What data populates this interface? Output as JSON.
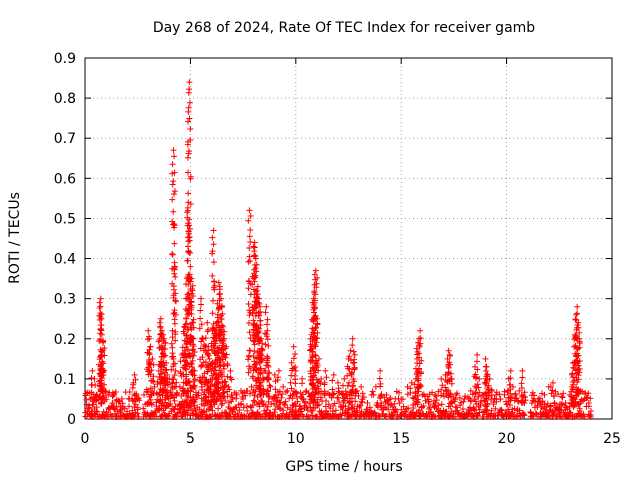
{
  "chart_data": {
    "type": "scatter",
    "title": "Day 268 of 2024, Rate Of TEC Index for receiver gamb",
    "xlabel": "GPS time / hours",
    "ylabel": "ROTI / TECUs",
    "xlim": [
      0,
      25
    ],
    "ylim": [
      0,
      0.9
    ],
    "xticks": [
      0,
      5,
      10,
      15,
      20,
      25
    ],
    "yticks": [
      0,
      0.1,
      0.2,
      0.3,
      0.4,
      0.5,
      0.6,
      0.7,
      0.8,
      0.9
    ],
    "grid": true,
    "marker": "+",
    "color": "#ff0000",
    "series": [
      {
        "name": "ROTI",
        "points": [
          [
            0.1,
            0.02
          ],
          [
            0.25,
            0.05
          ],
          [
            0.35,
            0.12
          ],
          [
            0.45,
            0.1
          ],
          [
            0.55,
            0.06
          ],
          [
            0.7,
            0.29
          ],
          [
            0.75,
            0.3
          ],
          [
            0.78,
            0.25
          ],
          [
            0.8,
            0.21
          ],
          [
            0.8,
            0.16
          ],
          [
            0.85,
            0.19
          ],
          [
            0.9,
            0.12
          ],
          [
            0.95,
            0.07
          ],
          [
            1.1,
            0.06
          ],
          [
            1.3,
            0.04
          ],
          [
            1.5,
            0.03
          ],
          [
            1.8,
            0.03
          ],
          [
            2.1,
            0.05
          ],
          [
            2.3,
            0.09
          ],
          [
            2.35,
            0.11
          ],
          [
            2.5,
            0.05
          ],
          [
            2.8,
            0.06
          ],
          [
            3.0,
            0.22
          ],
          [
            3.05,
            0.2
          ],
          [
            3.1,
            0.18
          ],
          [
            3.2,
            0.15
          ],
          [
            3.3,
            0.08
          ],
          [
            3.5,
            0.12
          ],
          [
            3.55,
            0.24
          ],
          [
            3.6,
            0.25
          ],
          [
            3.65,
            0.22
          ],
          [
            3.7,
            0.21
          ],
          [
            3.75,
            0.2
          ],
          [
            3.8,
            0.19
          ],
          [
            3.85,
            0.14
          ],
          [
            3.9,
            0.11
          ],
          [
            4.0,
            0.1
          ],
          [
            4.1,
            0.06
          ],
          [
            4.15,
            0.22
          ],
          [
            4.2,
            0.67
          ],
          [
            4.25,
            0.39
          ],
          [
            4.3,
            0.12
          ],
          [
            4.5,
            0.08
          ],
          [
            4.6,
            0.16
          ],
          [
            4.7,
            0.23
          ],
          [
            4.75,
            0.23
          ],
          [
            4.8,
            0.25
          ],
          [
            4.85,
            0.35
          ],
          [
            4.9,
            0.54
          ],
          [
            4.95,
            0.84
          ],
          [
            5.0,
            0.38
          ],
          [
            5.05,
            0.35
          ],
          [
            5.1,
            0.32
          ],
          [
            5.15,
            0.2
          ],
          [
            5.2,
            0.12
          ],
          [
            5.5,
            0.3
          ],
          [
            5.6,
            0.2
          ],
          [
            5.7,
            0.18
          ],
          [
            5.75,
            0.13
          ],
          [
            5.8,
            0.24
          ],
          [
            5.85,
            0.18
          ],
          [
            5.9,
            0.15
          ],
          [
            6.0,
            0.12
          ],
          [
            6.05,
            0.22
          ],
          [
            6.1,
            0.47
          ],
          [
            6.15,
            0.2
          ],
          [
            6.2,
            0.22
          ],
          [
            6.25,
            0.24
          ],
          [
            6.3,
            0.26
          ],
          [
            6.35,
            0.34
          ],
          [
            6.4,
            0.33
          ],
          [
            6.45,
            0.3
          ],
          [
            6.5,
            0.28
          ],
          [
            6.55,
            0.23
          ],
          [
            6.6,
            0.2
          ],
          [
            6.7,
            0.18
          ],
          [
            6.8,
            0.08
          ],
          [
            6.9,
            0.12
          ],
          [
            7.0,
            0.05
          ],
          [
            7.2,
            0.06
          ],
          [
            7.4,
            0.07
          ],
          [
            7.5,
            0.05
          ],
          [
            7.7,
            0.07
          ],
          [
            7.8,
            0.52
          ],
          [
            7.9,
            0.08
          ],
          [
            8.0,
            0.43
          ],
          [
            8.05,
            0.44
          ],
          [
            8.1,
            0.4
          ],
          [
            8.15,
            0.32
          ],
          [
            8.2,
            0.33
          ],
          [
            8.25,
            0.3
          ],
          [
            8.3,
            0.28
          ],
          [
            8.35,
            0.2
          ],
          [
            8.4,
            0.17
          ],
          [
            8.5,
            0.12
          ],
          [
            8.6,
            0.28
          ],
          [
            8.65,
            0.22
          ],
          [
            8.7,
            0.13
          ],
          [
            8.8,
            0.08
          ],
          [
            9.0,
            0.11
          ],
          [
            9.2,
            0.12
          ],
          [
            9.4,
            0.08
          ],
          [
            9.6,
            0.07
          ],
          [
            9.8,
            0.14
          ],
          [
            9.9,
            0.18
          ],
          [
            10.0,
            0.12
          ],
          [
            10.3,
            0.1
          ],
          [
            10.5,
            0.07
          ],
          [
            10.7,
            0.2
          ],
          [
            10.75,
            0.21
          ],
          [
            10.8,
            0.29
          ],
          [
            10.85,
            0.3
          ],
          [
            10.9,
            0.36
          ],
          [
            10.95,
            0.37
          ],
          [
            11.0,
            0.25
          ],
          [
            11.1,
            0.15
          ],
          [
            11.2,
            0.1
          ],
          [
            11.4,
            0.12
          ],
          [
            11.6,
            0.06
          ],
          [
            11.8,
            0.11
          ],
          [
            12.0,
            0.09
          ],
          [
            12.3,
            0.1
          ],
          [
            12.5,
            0.15
          ],
          [
            12.6,
            0.17
          ],
          [
            12.7,
            0.2
          ],
          [
            12.8,
            0.16
          ],
          [
            12.9,
            0.07
          ],
          [
            13.1,
            0.08
          ],
          [
            13.4,
            0.04
          ],
          [
            13.6,
            0.06
          ],
          [
            13.8,
            0.08
          ],
          [
            14.0,
            0.12
          ],
          [
            14.3,
            0.06
          ],
          [
            14.6,
            0.03
          ],
          [
            15.0,
            0.05
          ],
          [
            15.3,
            0.08
          ],
          [
            15.5,
            0.09
          ],
          [
            15.7,
            0.1
          ],
          [
            15.75,
            0.15
          ],
          [
            15.8,
            0.19
          ],
          [
            15.85,
            0.2
          ],
          [
            15.9,
            0.22
          ],
          [
            16.0,
            0.06
          ],
          [
            16.3,
            0.04
          ],
          [
            16.6,
            0.06
          ],
          [
            16.9,
            0.1
          ],
          [
            17.1,
            0.11
          ],
          [
            17.2,
            0.15
          ],
          [
            17.25,
            0.17
          ],
          [
            17.3,
            0.16
          ],
          [
            17.4,
            0.1
          ],
          [
            17.6,
            0.06
          ],
          [
            18.0,
            0.05
          ],
          [
            18.3,
            0.07
          ],
          [
            18.5,
            0.13
          ],
          [
            18.6,
            0.16
          ],
          [
            18.7,
            0.1
          ],
          [
            18.9,
            0.06
          ],
          [
            19.0,
            0.15
          ],
          [
            19.05,
            0.13
          ],
          [
            19.1,
            0.11
          ],
          [
            19.2,
            0.1
          ],
          [
            19.3,
            0.07
          ],
          [
            19.5,
            0.06
          ],
          [
            19.7,
            0.05
          ],
          [
            19.9,
            0.06
          ],
          [
            20.1,
            0.1
          ],
          [
            20.2,
            0.12
          ],
          [
            20.3,
            0.08
          ],
          [
            20.4,
            0.06
          ],
          [
            20.6,
            0.07
          ],
          [
            20.75,
            0.12
          ],
          [
            20.85,
            0.04
          ],
          [
            21.2,
            0.04
          ],
          [
            21.5,
            0.05
          ],
          [
            21.8,
            0.06
          ],
          [
            22.0,
            0.08
          ],
          [
            22.1,
            0.08
          ],
          [
            22.2,
            0.09
          ],
          [
            22.5,
            0.03
          ],
          [
            22.8,
            0.04
          ],
          [
            23.0,
            0.06
          ],
          [
            23.1,
            0.11
          ],
          [
            23.15,
            0.14
          ],
          [
            23.2,
            0.18
          ],
          [
            23.25,
            0.21
          ],
          [
            23.3,
            0.26
          ],
          [
            23.35,
            0.28
          ],
          [
            23.4,
            0.24
          ],
          [
            23.45,
            0.2
          ],
          [
            23.5,
            0.07
          ],
          [
            23.7,
            0.05
          ],
          [
            23.9,
            0.04
          ],
          [
            24.0,
            0.02
          ]
        ]
      }
    ]
  }
}
